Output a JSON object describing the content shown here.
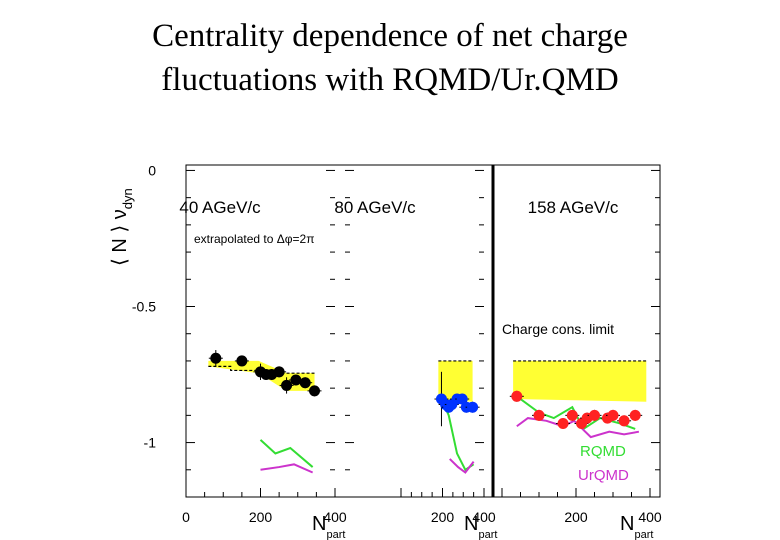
{
  "title_lines": [
    "Centrality dependence of net charge",
    "fluctuations with RQMD/Ur.QMD"
  ],
  "chart_data": {
    "type": "scatter",
    "title": "Centrality dependence of net charge fluctuations with RQMD/Ur.QMD",
    "ylabel": {
      "base": "⟨ N ⟩ ν",
      "sub": "dyn"
    },
    "xlabel": {
      "base": "N",
      "sub": "part"
    },
    "ylim": [
      -1.2,
      0.02
    ],
    "yticks": [
      {
        "v": 0,
        "label": "0"
      },
      {
        "v": -0.5,
        "label": "-0.5"
      },
      {
        "v": -1,
        "label": "-1"
      }
    ],
    "grid": false,
    "annotation": "extrapolated to Δφ=2π",
    "charge_limit_label": "Charge cons. limit",
    "legend": {
      "position": "bottom-right",
      "rqmd": "RQMD",
      "urqmd": "UrQMD"
    },
    "colors": {
      "band": "#ffff33",
      "rqmd": "#33dd33",
      "urqmd": "#cc33cc"
    },
    "panels": [
      {
        "label": "40 AGeV/c",
        "xlim": [
          0,
          400
        ],
        "xticks": [
          {
            "v": 0,
            "label": "0"
          },
          {
            "v": 200,
            "label": "200"
          },
          {
            "v": 400,
            "label": "400"
          }
        ],
        "marker_color": "#000000",
        "charge_limit": [
          [
            60,
            -0.72
          ],
          [
            120,
            -0.72
          ],
          [
            120,
            -0.735
          ],
          [
            195,
            -0.735
          ],
          [
            195,
            -0.745
          ],
          [
            345,
            -0.745
          ]
        ],
        "band": {
          "x": [
            60,
            345
          ],
          "top": [
            -0.7,
            -0.7,
            -0.745,
            -0.745
          ],
          "bottom": [
            -0.72,
            -0.745,
            -0.81,
            -0.81
          ],
          "xs": [
            60,
            195,
            270,
            345
          ]
        },
        "points": [
          {
            "x": 80,
            "y": -0.69,
            "err": 0.03
          },
          {
            "x": 150,
            "y": -0.7,
            "err": 0.02
          },
          {
            "x": 200,
            "y": -0.74,
            "err": 0.03
          },
          {
            "x": 215,
            "y": -0.75,
            "err": 0.02
          },
          {
            "x": 230,
            "y": -0.75,
            "err": 0.02
          },
          {
            "x": 250,
            "y": -0.74,
            "err": 0.02
          },
          {
            "x": 270,
            "y": -0.79,
            "err": 0.03
          },
          {
            "x": 295,
            "y": -0.77,
            "err": 0.02
          },
          {
            "x": 320,
            "y": -0.78,
            "err": 0.02
          },
          {
            "x": 345,
            "y": -0.81,
            "err": 0.02
          }
        ],
        "rqmd": [
          [
            200,
            -0.99
          ],
          [
            240,
            -1.04
          ],
          [
            280,
            -1.02
          ],
          [
            340,
            -1.09
          ]
        ],
        "urqmd": [
          [
            200,
            -1.1
          ],
          [
            250,
            -1.09
          ],
          [
            290,
            -1.08
          ],
          [
            340,
            -1.11
          ]
        ]
      },
      {
        "label": "80 AGeV/c",
        "xlim": [
          0,
          400
        ],
        "xticks": [
          {
            "v": 200,
            "label": "200"
          },
          {
            "v": 400,
            "label": "400"
          }
        ],
        "marker_color": "#0033ff",
        "charge_limit": [
          [
            180,
            -0.7
          ],
          [
            345,
            -0.7
          ]
        ],
        "band": {
          "x": [
            180,
            345
          ],
          "top": [
            -0.7,
            -0.7
          ],
          "bottom": [
            -0.84,
            -0.85
          ],
          "xs": [
            180,
            345
          ]
        },
        "points": [
          {
            "x": 195,
            "y": -0.84,
            "err": 0.1
          },
          {
            "x": 215,
            "y": -0.86,
            "err": 0.02
          },
          {
            "x": 230,
            "y": -0.87,
            "err": 0.02
          },
          {
            "x": 245,
            "y": -0.86,
            "err": 0.02
          },
          {
            "x": 270,
            "y": -0.84,
            "err": 0.02
          },
          {
            "x": 295,
            "y": -0.84,
            "err": 0.02
          },
          {
            "x": 315,
            "y": -0.87,
            "err": 0.02
          },
          {
            "x": 345,
            "y": -0.87,
            "err": 0.02
          }
        ],
        "rqmd": [
          [
            195,
            -0.84
          ],
          [
            230,
            -0.9
          ],
          [
            270,
            -1.04
          ],
          [
            310,
            -1.1
          ],
          [
            350,
            -1.08
          ]
        ],
        "urqmd": [
          [
            235,
            -1.06
          ],
          [
            275,
            -1.09
          ],
          [
            310,
            -1.11
          ],
          [
            350,
            -1.07
          ]
        ]
      },
      {
        "label": "158 AGeV/c",
        "xlim": [
          0,
          400
        ],
        "xticks": [
          {
            "v": 200,
            "label": "200"
          },
          {
            "v": 400,
            "label": "400"
          }
        ],
        "marker_color": "#ff2222",
        "charge_limit": [
          [
            30,
            -0.7
          ],
          [
            390,
            -0.7
          ]
        ],
        "band": {
          "x": [
            30,
            390
          ],
          "top": [
            -0.7,
            -0.7
          ],
          "bottom": [
            -0.84,
            -0.85
          ],
          "xs": [
            30,
            390
          ]
        },
        "points": [
          {
            "x": 40,
            "y": -0.83,
            "err": 0.02
          },
          {
            "x": 100,
            "y": -0.9,
            "err": 0.02
          },
          {
            "x": 165,
            "y": -0.93,
            "err": 0.02
          },
          {
            "x": 190,
            "y": -0.9,
            "err": 0.02
          },
          {
            "x": 215,
            "y": -0.93,
            "err": 0.02
          },
          {
            "x": 230,
            "y": -0.91,
            "err": 0.02
          },
          {
            "x": 250,
            "y": -0.9,
            "err": 0.02
          },
          {
            "x": 285,
            "y": -0.91,
            "err": 0.02
          },
          {
            "x": 300,
            "y": -0.9,
            "err": 0.02
          },
          {
            "x": 330,
            "y": -0.92,
            "err": 0.02
          },
          {
            "x": 360,
            "y": -0.9,
            "err": 0.02
          }
        ],
        "rqmd": [
          [
            40,
            -0.83
          ],
          [
            100,
            -0.89
          ],
          [
            140,
            -0.91
          ],
          [
            190,
            -0.87
          ],
          [
            220,
            -0.95
          ],
          [
            265,
            -0.91
          ],
          [
            320,
            -0.93
          ],
          [
            360,
            -0.95
          ]
        ],
        "urqmd": [
          [
            40,
            -0.94
          ],
          [
            70,
            -0.91
          ],
          [
            120,
            -0.92
          ],
          [
            165,
            -0.94
          ],
          [
            195,
            -0.92
          ],
          [
            240,
            -0.98
          ],
          [
            290,
            -0.96
          ],
          [
            330,
            -0.97
          ],
          [
            370,
            -0.96
          ]
        ]
      }
    ]
  }
}
